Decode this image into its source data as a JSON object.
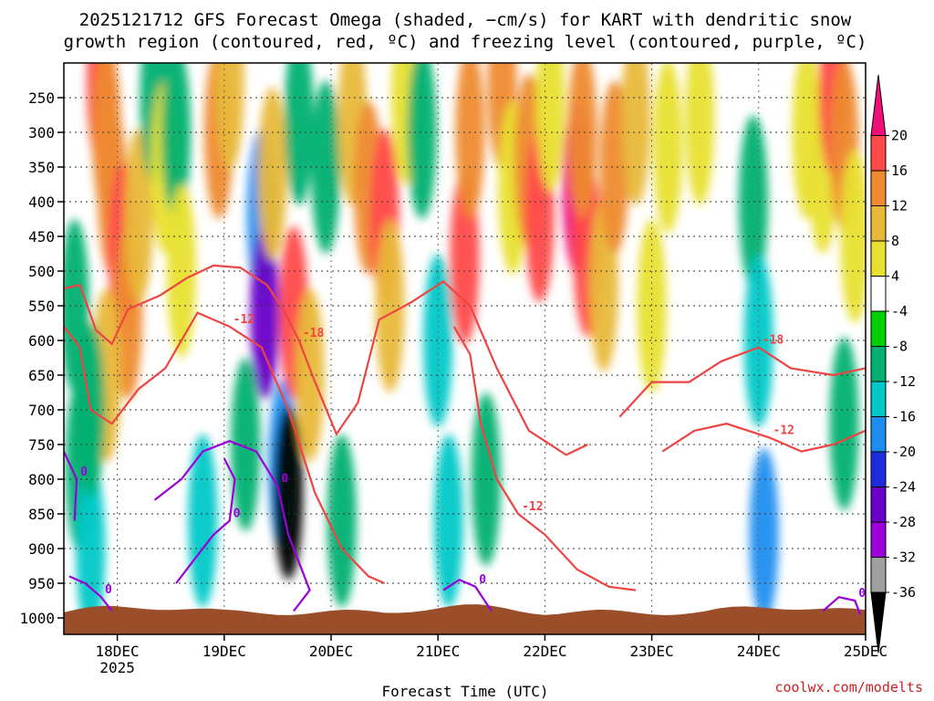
{
  "chart_data": {
    "type": "heatmap",
    "title_line1": "2025121712 GFS Forecast Omega (shaded, −cm/s) for KART with dendritic snow",
    "title_line2": "growth region (contoured, red, ºC) and freezing level (contoured, purple, ºC)",
    "xlabel": "Forecast Time (UTC)",
    "x_ticks": [
      {
        "t": 0.5,
        "label": "18DEC",
        "sub": "2025"
      },
      {
        "t": 1.5,
        "label": "19DEC",
        "sub": ""
      },
      {
        "t": 2.5,
        "label": "20DEC",
        "sub": ""
      },
      {
        "t": 3.5,
        "label": "21DEC",
        "sub": ""
      },
      {
        "t": 4.5,
        "label": "22DEC",
        "sub": ""
      },
      {
        "t": 5.5,
        "label": "23DEC",
        "sub": ""
      },
      {
        "t": 6.5,
        "label": "24DEC",
        "sub": ""
      },
      {
        "t": 7.5,
        "label": "25DEC",
        "sub": ""
      }
    ],
    "x_range_days": [
      0.0,
      7.5
    ],
    "y_ticks_hpa": [
      250,
      300,
      350,
      400,
      450,
      500,
      550,
      600,
      650,
      700,
      750,
      800,
      850,
      900,
      950,
      1000
    ],
    "y_range_hpa": [
      200,
      1000
    ],
    "colorbar": {
      "levels": [
        -36,
        -32,
        -28,
        -24,
        -20,
        -16,
        -12,
        -8,
        -4,
        4,
        8,
        12,
        16,
        20
      ],
      "label_levels": [
        20,
        16,
        12,
        8,
        4,
        -4,
        -8,
        -12,
        -16,
        -20,
        -24,
        -28,
        -32,
        -36
      ],
      "colors": [
        "#000000",
        "#a0a0a0",
        "#9b00d8",
        "#6a00c8",
        "#1e2cdc",
        "#1c8ef0",
        "#00c8c8",
        "#00b070",
        "#00d000",
        "#ffffff",
        "#e8e030",
        "#e8b838",
        "#ee8a30",
        "#ff4a4a",
        "#f0107a"
      ]
    },
    "omega_cells": [
      {
        "t": 0.1,
        "p": 550,
        "v": -8
      },
      {
        "t": 0.15,
        "p": 780,
        "v": -8
      },
      {
        "t": 0.25,
        "p": 900,
        "v": -12
      },
      {
        "t": 0.35,
        "p": 230,
        "v": 16
      },
      {
        "t": 0.4,
        "p": 300,
        "v": 12
      },
      {
        "t": 0.45,
        "p": 380,
        "v": 12
      },
      {
        "t": 0.55,
        "p": 470,
        "v": 16
      },
      {
        "t": 0.6,
        "p": 560,
        "v": 12
      },
      {
        "t": 0.4,
        "p": 650,
        "v": 8
      },
      {
        "t": 0.25,
        "p": 700,
        "v": -8
      },
      {
        "t": 0.7,
        "p": 420,
        "v": 8
      },
      {
        "t": 0.85,
        "p": 250,
        "v": -8
      },
      {
        "t": 0.95,
        "p": 350,
        "v": 4
      },
      {
        "t": 1.05,
        "p": 300,
        "v": -8
      },
      {
        "t": 1.1,
        "p": 500,
        "v": 4
      },
      {
        "t": 1.3,
        "p": 860,
        "v": -12
      },
      {
        "t": 1.45,
        "p": 300,
        "v": 12
      },
      {
        "t": 1.55,
        "p": 230,
        "v": 8
      },
      {
        "t": 1.7,
        "p": 750,
        "v": -8
      },
      {
        "t": 1.85,
        "p": 420,
        "v": -16
      },
      {
        "t": 1.88,
        "p": 560,
        "v": -24
      },
      {
        "t": 1.95,
        "p": 360,
        "v": 8
      },
      {
        "t": 2.05,
        "p": 780,
        "v": -16
      },
      {
        "t": 2.1,
        "p": 820,
        "v": -36
      },
      {
        "t": 2.15,
        "p": 560,
        "v": 16
      },
      {
        "t": 2.2,
        "p": 280,
        "v": -8
      },
      {
        "t": 2.3,
        "p": 650,
        "v": 8
      },
      {
        "t": 2.45,
        "p": 350,
        "v": -8
      },
      {
        "t": 2.6,
        "p": 860,
        "v": -8
      },
      {
        "t": 2.7,
        "p": 280,
        "v": 8
      },
      {
        "t": 2.85,
        "p": 380,
        "v": 12
      },
      {
        "t": 3.0,
        "p": 420,
        "v": 16
      },
      {
        "t": 3.05,
        "p": 550,
        "v": 8
      },
      {
        "t": 3.2,
        "p": 250,
        "v": 4
      },
      {
        "t": 3.35,
        "p": 300,
        "v": -8
      },
      {
        "t": 3.5,
        "p": 600,
        "v": -12
      },
      {
        "t": 3.6,
        "p": 860,
        "v": -12
      },
      {
        "t": 3.75,
        "p": 480,
        "v": 16
      },
      {
        "t": 3.8,
        "p": 300,
        "v": 12
      },
      {
        "t": 3.95,
        "p": 800,
        "v": -8
      },
      {
        "t": 4.1,
        "p": 230,
        "v": 12
      },
      {
        "t": 4.2,
        "p": 380,
        "v": 4
      },
      {
        "t": 4.35,
        "p": 340,
        "v": 12
      },
      {
        "t": 4.45,
        "p": 420,
        "v": 16
      },
      {
        "t": 4.55,
        "p": 260,
        "v": 4
      },
      {
        "t": 4.8,
        "p": 380,
        "v": 20
      },
      {
        "t": 4.9,
        "p": 470,
        "v": 16
      },
      {
        "t": 4.85,
        "p": 300,
        "v": 12
      },
      {
        "t": 5.05,
        "p": 520,
        "v": 8
      },
      {
        "t": 5.15,
        "p": 350,
        "v": 12
      },
      {
        "t": 5.35,
        "p": 280,
        "v": 8
      },
      {
        "t": 5.5,
        "p": 550,
        "v": 4
      },
      {
        "t": 5.65,
        "p": 320,
        "v": 4
      },
      {
        "t": 5.95,
        "p": 280,
        "v": 4
      },
      {
        "t": 6.45,
        "p": 400,
        "v": -8
      },
      {
        "t": 6.5,
        "p": 600,
        "v": -12
      },
      {
        "t": 6.55,
        "p": 880,
        "v": -16
      },
      {
        "t": 6.95,
        "p": 300,
        "v": 4
      },
      {
        "t": 7.1,
        "p": 350,
        "v": 4
      },
      {
        "t": 7.2,
        "p": 240,
        "v": 16
      },
      {
        "t": 7.3,
        "p": 320,
        "v": 12
      },
      {
        "t": 7.3,
        "p": 720,
        "v": -8
      },
      {
        "t": 7.4,
        "p": 450,
        "v": 4
      }
    ],
    "dendritic_contours": [
      {
        "label": "-18",
        "points": [
          [
            0.0,
            525
          ],
          [
            0.15,
            520
          ],
          [
            0.3,
            585
          ],
          [
            0.45,
            605
          ],
          [
            0.6,
            555
          ],
          [
            0.9,
            535
          ],
          [
            1.15,
            510
          ],
          [
            1.4,
            492
          ],
          [
            1.65,
            495
          ],
          [
            1.9,
            520
          ],
          [
            2.05,
            555
          ],
          [
            2.2,
            600
          ],
          [
            2.35,
            660
          ],
          [
            2.55,
            735
          ],
          [
            2.75,
            690
          ],
          [
            2.95,
            570
          ],
          [
            3.25,
            545
          ],
          [
            3.55,
            515
          ],
          [
            3.8,
            550
          ],
          [
            4.05,
            640
          ],
          [
            4.35,
            730
          ],
          [
            4.7,
            765
          ],
          [
            4.9,
            750
          ]
        ]
      },
      {
        "label": "-12",
        "points": [
          [
            0.0,
            580
          ],
          [
            0.15,
            610
          ],
          [
            0.25,
            700
          ],
          [
            0.45,
            720
          ],
          [
            0.7,
            670
          ],
          [
            0.95,
            640
          ],
          [
            1.25,
            560
          ],
          [
            1.55,
            580
          ],
          [
            1.85,
            610
          ],
          [
            2.1,
            700
          ],
          [
            2.35,
            820
          ],
          [
            2.6,
            900
          ],
          [
            2.85,
            940
          ],
          [
            3.0,
            950
          ]
        ]
      },
      {
        "label": "-12",
        "points": [
          [
            3.65,
            580
          ],
          [
            3.8,
            620
          ],
          [
            3.9,
            720
          ],
          [
            4.05,
            800
          ],
          [
            4.25,
            850
          ],
          [
            4.5,
            880
          ],
          [
            4.8,
            930
          ],
          [
            5.1,
            955
          ],
          [
            5.35,
            960
          ]
        ]
      },
      {
        "label": "-18",
        "points": [
          [
            5.2,
            710
          ],
          [
            5.5,
            660
          ],
          [
            5.85,
            660
          ],
          [
            6.15,
            630
          ],
          [
            6.5,
            610
          ],
          [
            6.8,
            640
          ],
          [
            7.2,
            650
          ],
          [
            7.5,
            640
          ]
        ]
      },
      {
        "label": "-12",
        "points": [
          [
            5.6,
            760
          ],
          [
            5.9,
            730
          ],
          [
            6.2,
            720
          ],
          [
            6.6,
            740
          ],
          [
            6.9,
            760
          ],
          [
            7.2,
            750
          ],
          [
            7.5,
            730
          ]
        ]
      }
    ],
    "freezing_contours": [
      {
        "label": "0",
        "points": [
          [
            0.0,
            760
          ],
          [
            0.12,
            800
          ],
          [
            0.1,
            860
          ]
        ]
      },
      {
        "label": "0",
        "points": [
          [
            0.85,
            830
          ],
          [
            1.1,
            800
          ],
          [
            1.3,
            760
          ],
          [
            1.55,
            745
          ],
          [
            1.8,
            760
          ],
          [
            2.0,
            810
          ],
          [
            2.1,
            880
          ],
          [
            2.2,
            920
          ],
          [
            2.3,
            960
          ],
          [
            2.15,
            990
          ]
        ]
      },
      {
        "label": "0",
        "points": [
          [
            1.05,
            950
          ],
          [
            1.2,
            920
          ],
          [
            1.4,
            880
          ],
          [
            1.55,
            860
          ],
          [
            1.6,
            800
          ],
          [
            1.5,
            770
          ]
        ]
      },
      {
        "label": "0",
        "points": [
          [
            3.55,
            960
          ],
          [
            3.7,
            945
          ],
          [
            3.85,
            955
          ],
          [
            4.0,
            990
          ]
        ]
      },
      {
        "label": "0",
        "points": [
          [
            0.05,
            940
          ],
          [
            0.2,
            950
          ],
          [
            0.35,
            970
          ],
          [
            0.45,
            990
          ]
        ]
      },
      {
        "label": "0",
        "points": [
          [
            7.1,
            990
          ],
          [
            7.25,
            970
          ],
          [
            7.4,
            975
          ],
          [
            7.45,
            995
          ]
        ]
      }
    ]
  },
  "credit": "coolwx.com/modelts"
}
